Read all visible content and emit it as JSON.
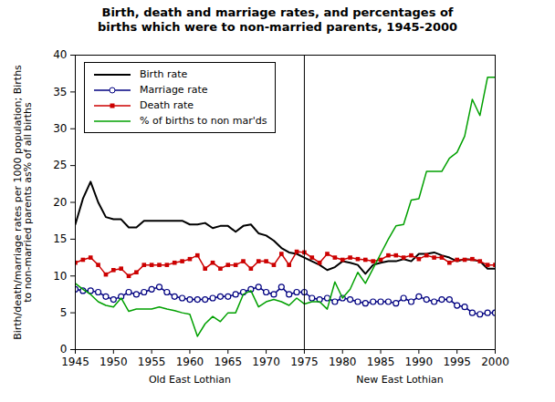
{
  "chart_data": {
    "type": "line",
    "title": "Birth, death and marriage rates, and percentages of births which were to non-married parents, 1945-2000",
    "y_label": "Birth/death/marriage rates per 1000 population; Births to non-married parents as% of all births",
    "x": [
      1945,
      1946,
      1947,
      1948,
      1949,
      1950,
      1951,
      1952,
      1953,
      1954,
      1955,
      1956,
      1957,
      1958,
      1959,
      1960,
      1961,
      1962,
      1963,
      1964,
      1965,
      1966,
      1967,
      1968,
      1969,
      1970,
      1971,
      1972,
      1973,
      1974,
      1975,
      1976,
      1977,
      1978,
      1979,
      1980,
      1981,
      1982,
      1983,
      1984,
      1985,
      1986,
      1987,
      1988,
      1989,
      1990,
      1991,
      1992,
      1993,
      1994,
      1995,
      1996,
      1997,
      1998,
      1999,
      2000
    ],
    "series": [
      {
        "name": "Birth rate",
        "color": "#000000",
        "marker": "none",
        "line_style": "solid",
        "values": [
          17,
          20.5,
          22.8,
          20,
          18,
          17.7,
          17.7,
          16.6,
          16.6,
          17.5,
          17.5,
          17.5,
          17.5,
          17.5,
          17.5,
          17,
          17,
          17.2,
          16.5,
          16.8,
          16.8,
          16,
          16.8,
          17,
          15.8,
          15.5,
          14.8,
          13.8,
          13.2,
          13,
          12.5,
          12,
          11.5,
          10.8,
          11.2,
          12,
          11.8,
          11.5,
          10.3,
          11.5,
          11.8,
          12,
          12,
          12.3,
          12,
          13,
          13,
          13.2,
          12.8,
          12.5,
          12,
          12.3,
          12.2,
          12,
          11,
          11
        ]
      },
      {
        "name": "Marriage rate",
        "color": "#000080",
        "marker": "open_circle",
        "line_style": "solid",
        "values": [
          8.2,
          8,
          8,
          7.8,
          7.2,
          6.8,
          7.2,
          7.8,
          7.5,
          7.8,
          8.2,
          8.5,
          7.8,
          7.2,
          7,
          6.8,
          6.8,
          6.8,
          7,
          7.2,
          7.2,
          7.5,
          7.8,
          8.2,
          8.5,
          7.8,
          7.5,
          8.5,
          7.5,
          7.8,
          7.8,
          7,
          6.8,
          7,
          6.5,
          7,
          6.8,
          6.5,
          6.3,
          6.5,
          6.5,
          6.5,
          6.3,
          7,
          6.5,
          7.2,
          6.8,
          6.5,
          6.8,
          6.8,
          6,
          5.8,
          5,
          4.8,
          5,
          5
        ]
      },
      {
        "name": "Death rate",
        "color": "#cc0000",
        "marker": "square",
        "line_style": "solid",
        "values": [
          11.8,
          12.2,
          12.5,
          11.5,
          10.2,
          10.8,
          11,
          10,
          10.5,
          11.5,
          11.5,
          11.5,
          11.5,
          11.8,
          12,
          12.3,
          12.8,
          11,
          11.8,
          11,
          11.5,
          11.5,
          12,
          11,
          12,
          12,
          11.5,
          13,
          11.5,
          13.3,
          13.2,
          12.5,
          11.8,
          13,
          12.5,
          12.2,
          12.5,
          12.3,
          12.2,
          12,
          12.2,
          12.8,
          12.8,
          12.5,
          12.8,
          12.3,
          12.8,
          12.5,
          12.5,
          11.8,
          12.2,
          12.2,
          12.3,
          12,
          11.5,
          11.5
        ]
      },
      {
        "name": "% of births to non mar'ds",
        "color": "#00a000",
        "marker": "none",
        "line_style": "solid",
        "values": [
          9,
          8.2,
          7.5,
          6.5,
          6,
          5.8,
          7,
          5.2,
          5.5,
          5.5,
          5.5,
          5.8,
          5.5,
          5.3,
          5,
          4.8,
          1.8,
          3.5,
          4.5,
          3.8,
          5,
          5,
          7.5,
          8,
          5.8,
          6.5,
          6.8,
          6.5,
          6,
          7,
          6.2,
          6.5,
          6.5,
          5.5,
          9.2,
          7,
          8.2,
          10.5,
          9,
          11,
          13,
          15,
          16.8,
          17,
          20.3,
          20.5,
          24.2,
          24.2,
          24.2,
          26,
          26.8,
          29,
          34,
          31.8,
          37,
          37
        ]
      }
    ],
    "xlim": [
      1945,
      2000
    ],
    "xticks": [
      1945,
      1950,
      1955,
      1960,
      1965,
      1970,
      1975,
      1980,
      1985,
      1990,
      1995,
      2000
    ],
    "ylim": [
      0,
      40
    ],
    "yticks": [
      0,
      5,
      10,
      15,
      20,
      25,
      30,
      35,
      40
    ],
    "grid": false,
    "legend": "upper left",
    "divider": 1975,
    "regions": [
      {
        "label": "Old East Lothian",
        "from": 1945,
        "to": 1975
      },
      {
        "label": "New East Lothian",
        "from": 1975,
        "to": 2000
      }
    ]
  }
}
